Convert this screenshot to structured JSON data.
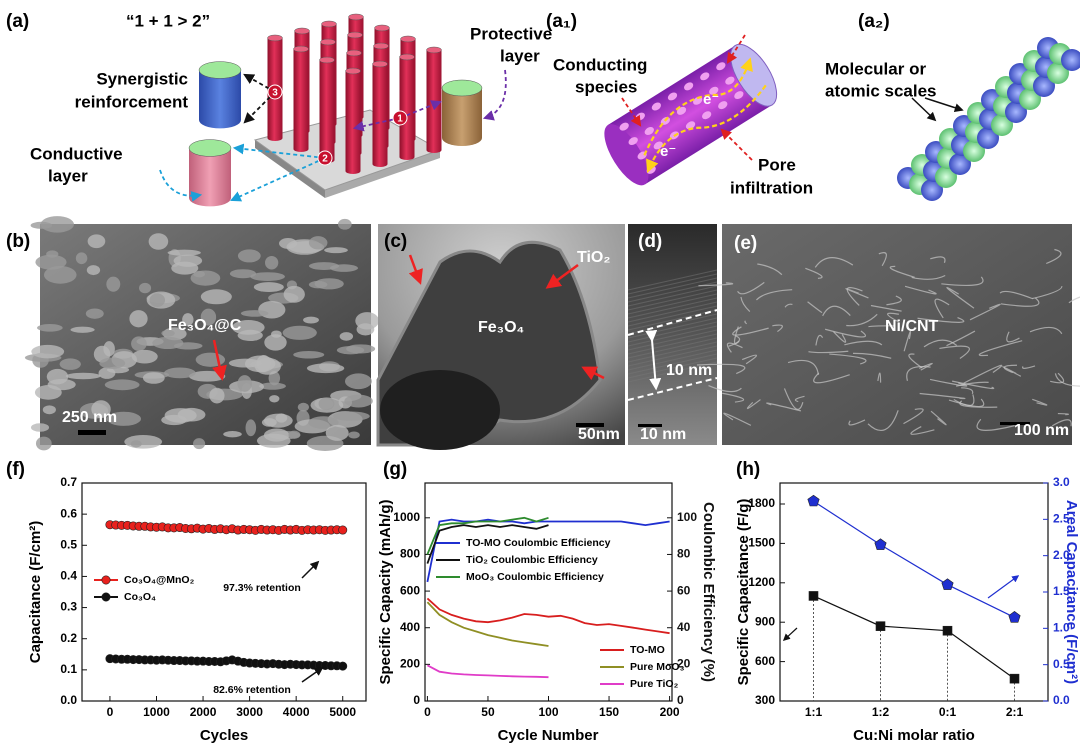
{
  "panels": {
    "a": {
      "label": "(a)",
      "motto": "“1 + 1 > 2”",
      "synergistic": [
        "Synergistic",
        "reinforcement"
      ],
      "protective": [
        "Protective",
        "layer"
      ],
      "conductive": [
        "Conductive",
        "layer"
      ],
      "steps": [
        "1",
        "2",
        "3"
      ]
    },
    "a1": {
      "label": "(a₁)",
      "conducting": [
        "Conducting",
        "species"
      ],
      "pore": [
        "Pore",
        "infiltration"
      ],
      "electrons": [
        "e⁻",
        "e⁻"
      ]
    },
    "a2": {
      "label": "(a₂)",
      "scales": [
        "Molecular or",
        "atomic scales"
      ]
    },
    "b": {
      "label": "(b)",
      "material": "Fe₃O₄@C",
      "scale_bar": "250 nm"
    },
    "c": {
      "label": "(c)",
      "shell": "TiO₂",
      "core": "Fe₃O₄",
      "scale_bar": "50nm"
    },
    "d": {
      "label": "(d)",
      "thickness": "10 nm",
      "scale_bar": "10 nm"
    },
    "e": {
      "label": "(e)",
      "material": "Ni/CNT",
      "scale_bar": "100 nm"
    }
  },
  "chart_data": [
    {
      "type": "scatter",
      "label": "(f)",
      "xlabel": "Cycles",
      "ylabel": "Capacitance (F/cm²)",
      "xlim": [
        -600,
        5500
      ],
      "xticks": [
        0,
        1000,
        2000,
        3000,
        4000,
        5000
      ],
      "ylim": [
        0,
        0.7
      ],
      "yticks": [
        {
          "value": 0,
          "label": "0.0"
        },
        0.1,
        0.2,
        0.3,
        0.4,
        0.5,
        0.6,
        0.7
      ],
      "legend": {
        "y": "center left"
      },
      "annotations": [
        "97.3% retention",
        "82.6% retention"
      ],
      "x": [
        0,
        125,
        250,
        375,
        500,
        625,
        750,
        875,
        1000,
        1125,
        1250,
        1375,
        1500,
        1625,
        1750,
        1875,
        2000,
        2125,
        2250,
        2375,
        2500,
        2625,
        2750,
        2875,
        3000,
        3125,
        3250,
        3375,
        3500,
        3625,
        3750,
        3875,
        4000,
        4125,
        4250,
        4375,
        4500,
        4625,
        4750,
        4875,
        5000
      ],
      "series": [
        {
          "name": "Co₃O₄@MnO₂",
          "color": "#e8211d",
          "marker": "circle",
          "values": [
            0.566,
            0.565,
            0.564,
            0.564,
            0.562,
            0.561,
            0.561,
            0.559,
            0.558,
            0.559,
            0.556,
            0.556,
            0.557,
            0.554,
            0.553,
            0.555,
            0.552,
            0.554,
            0.551,
            0.553,
            0.55,
            0.553,
            0.549,
            0.551,
            0.55,
            0.548,
            0.551,
            0.549,
            0.55,
            0.548,
            0.551,
            0.549,
            0.551,
            0.548,
            0.55,
            0.549,
            0.55,
            0.548,
            0.549,
            0.55,
            0.549
          ]
        },
        {
          "name": "Co₃O₄",
          "color": "#111111",
          "marker": "circle",
          "values": [
            0.136,
            0.135,
            0.134,
            0.134,
            0.133,
            0.133,
            0.132,
            0.132,
            0.131,
            0.132,
            0.131,
            0.13,
            0.13,
            0.129,
            0.129,
            0.128,
            0.128,
            0.127,
            0.127,
            0.126,
            0.129,
            0.132,
            0.128,
            0.124,
            0.122,
            0.121,
            0.12,
            0.119,
            0.12,
            0.118,
            0.117,
            0.118,
            0.117,
            0.116,
            0.116,
            0.115,
            0.114,
            0.114,
            0.113,
            0.113,
            0.112
          ]
        }
      ]
    },
    {
      "type": "line",
      "label": "(g)",
      "xlabel": "Cycle Number",
      "ylabel": "Specific Capacity (mAh/g)",
      "y2label": "Coulombic Efficiency (%)",
      "xlim": [
        -2,
        202
      ],
      "xticks": [
        0,
        50,
        100,
        150,
        200
      ],
      "ylim": [
        0,
        1190
      ],
      "yticks": [
        0,
        200,
        400,
        600,
        800,
        1000
      ],
      "y2lim": [
        0,
        119
      ],
      "y2ticks": [
        0,
        20,
        40,
        60,
        80,
        100
      ],
      "legend": {
        "y2": "upper left",
        "y": "lower right"
      },
      "x": [
        0,
        10,
        20,
        30,
        40,
        50,
        60,
        70,
        80,
        90,
        100,
        110,
        120,
        130,
        140,
        150,
        160,
        170,
        180,
        190,
        200
      ],
      "series": [
        {
          "name": "TO-MO Coulombic Efficiency",
          "color": "#1f2fd0",
          "axis": "y2",
          "values": [
            65,
            98,
            99,
            98,
            98,
            99,
            98,
            98,
            97,
            98,
            98,
            98,
            98,
            98,
            98,
            98,
            98,
            97,
            96,
            97,
            98
          ]
        },
        {
          "name": "TiO₂ Coulombic Efficiency",
          "color": "#111111",
          "axis": "y2",
          "values": [
            75,
            93,
            95,
            96,
            95,
            96,
            95,
            96,
            95,
            94,
            96,
            null,
            null,
            null,
            null,
            null,
            null,
            null,
            null,
            null,
            null
          ]
        },
        {
          "name": "MoO₃ Coulombic Efficiency",
          "color": "#2e8b2e",
          "axis": "y2",
          "values": [
            80,
            96,
            97,
            97,
            98,
            98,
            98,
            99,
            100,
            98,
            100,
            null,
            null,
            null,
            null,
            null,
            null,
            null,
            null,
            null,
            null
          ]
        },
        {
          "name": "TO-MO",
          "color": "#d81e1e",
          "values": [
            560,
            500,
            470,
            450,
            435,
            430,
            440,
            455,
            475,
            470,
            460,
            465,
            450,
            425,
            415,
            420,
            410,
            400,
            390,
            380,
            370
          ]
        },
        {
          "name": "Pure MoO₃",
          "color": "#8f8f24",
          "values": [
            540,
            470,
            430,
            400,
            380,
            360,
            345,
            330,
            320,
            310,
            300,
            null,
            null,
            null,
            null,
            null,
            null,
            null,
            null,
            null,
            null
          ]
        },
        {
          "name": "Pure TiO₂",
          "color": "#e03cc8",
          "values": [
            195,
            160,
            150,
            145,
            142,
            140,
            137,
            135,
            133,
            132,
            130,
            null,
            null,
            null,
            null,
            null,
            null,
            null,
            null,
            null,
            null
          ]
        }
      ]
    },
    {
      "type": "line",
      "label": "(h)",
      "xlabel": "Cu:Ni molar ratio",
      "ylabel": "Specific Capacitance (F/g)",
      "y2label": "Areal Capacitance (F/cm²)",
      "categories": [
        "1:1",
        "1:2",
        "0:1",
        "2:1"
      ],
      "ylim": [
        300,
        1960
      ],
      "yticks": [
        300,
        600,
        900,
        1200,
        1500,
        1800
      ],
      "y2lim": [
        0,
        3.0
      ],
      "y2ticks": [
        {
          "value": 0,
          "label": "0.0"
        },
        0.5,
        {
          "value": 1,
          "label": "1.0"
        },
        1.5,
        {
          "value": 2,
          "label": "2.0"
        },
        2.5,
        {
          "value": 3,
          "label": "3.0"
        }
      ],
      "y2_color": "#1f2fd0",
      "series": [
        {
          "name": "Specific Capacitance",
          "color": "#111111",
          "marker": "square",
          "values": [
            1100,
            870,
            835,
            470
          ]
        },
        {
          "name": "Areal Capacitance",
          "color": "#1f2fd0",
          "marker": "pentagon",
          "axis": "y2",
          "values": [
            2.75,
            2.15,
            1.6,
            1.15
          ]
        }
      ]
    }
  ]
}
